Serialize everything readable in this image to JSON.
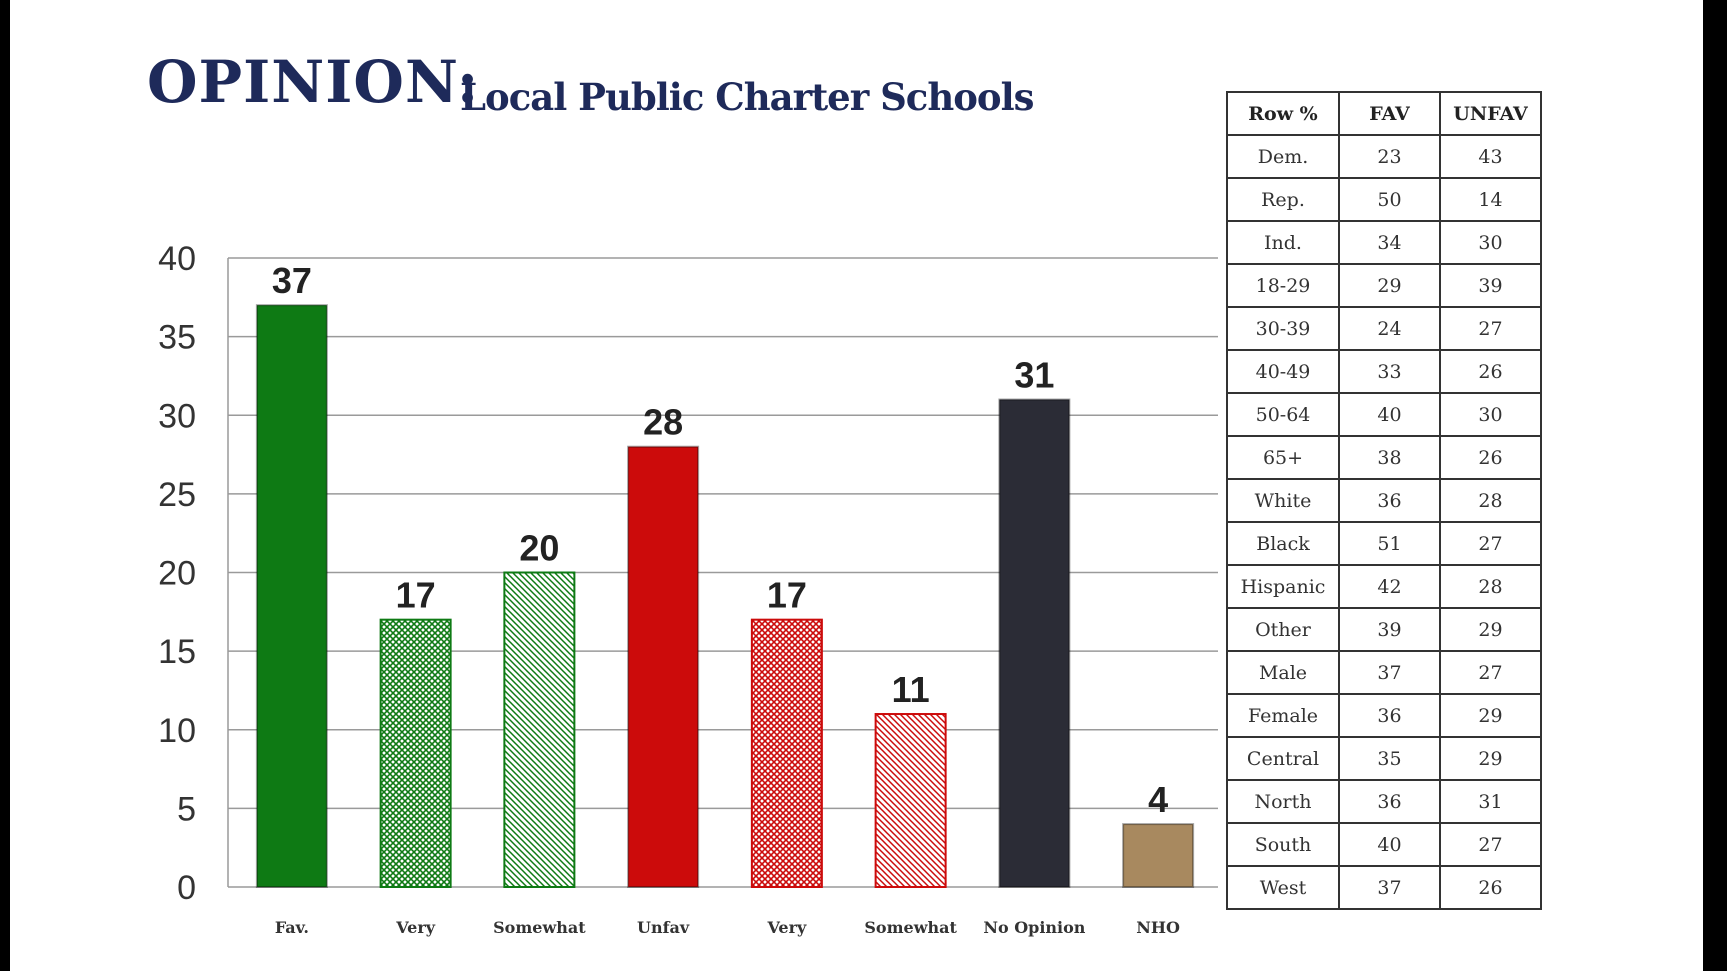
{
  "title": {
    "main": "OPINION:",
    "subtitle": "Local Public Charter Schools"
  },
  "chart_data": {
    "type": "bar",
    "categories": [
      "Fav.",
      "Very",
      "Somewhat",
      "Unfav",
      "Very",
      "Somewhat",
      "No Opinion",
      "NHO"
    ],
    "values": [
      37,
      17,
      20,
      28,
      17,
      11,
      31,
      4
    ],
    "data_labels": [
      "37",
      "17",
      "20",
      "28",
      "17",
      "11",
      "31",
      "4"
    ],
    "ylim": [
      0,
      40
    ],
    "y_ticks": [
      0,
      5,
      10,
      15,
      20,
      25,
      30,
      35,
      40
    ],
    "grid": true,
    "legend": "none",
    "bar_styles": [
      {
        "color": "#0e7a14",
        "pattern": "solid"
      },
      {
        "color": "#0e7a14",
        "pattern": "crosshatch"
      },
      {
        "color": "#0e7a14",
        "pattern": "diagonal"
      },
      {
        "color": "#cc0b0b",
        "pattern": "solid"
      },
      {
        "color": "#cc0b0b",
        "pattern": "crosshatch"
      },
      {
        "color": "#cc0b0b",
        "pattern": "diagonal"
      },
      {
        "color": "#2b2c36",
        "pattern": "solid"
      },
      {
        "color": "#a8895f",
        "pattern": "solid"
      }
    ]
  },
  "table": {
    "headers": [
      "Row %",
      "FAV",
      "UNFAV"
    ],
    "rows": [
      [
        "Dem.",
        "23",
        "43"
      ],
      [
        "Rep.",
        "50",
        "14"
      ],
      [
        "Ind.",
        "34",
        "30"
      ],
      [
        "18-29",
        "29",
        "39"
      ],
      [
        "30-39",
        "24",
        "27"
      ],
      [
        "40-49",
        "33",
        "26"
      ],
      [
        "50-64",
        "40",
        "30"
      ],
      [
        "65+",
        "38",
        "26"
      ],
      [
        "White",
        "36",
        "28"
      ],
      [
        "Black",
        "51",
        "27"
      ],
      [
        "Hispanic",
        "42",
        "28"
      ],
      [
        "Other",
        "39",
        "29"
      ],
      [
        "Male",
        "37",
        "27"
      ],
      [
        "Female",
        "36",
        "29"
      ],
      [
        "Central",
        "35",
        "29"
      ],
      [
        "North",
        "36",
        "31"
      ],
      [
        "South",
        "40",
        "27"
      ],
      [
        "West",
        "37",
        "26"
      ]
    ]
  }
}
